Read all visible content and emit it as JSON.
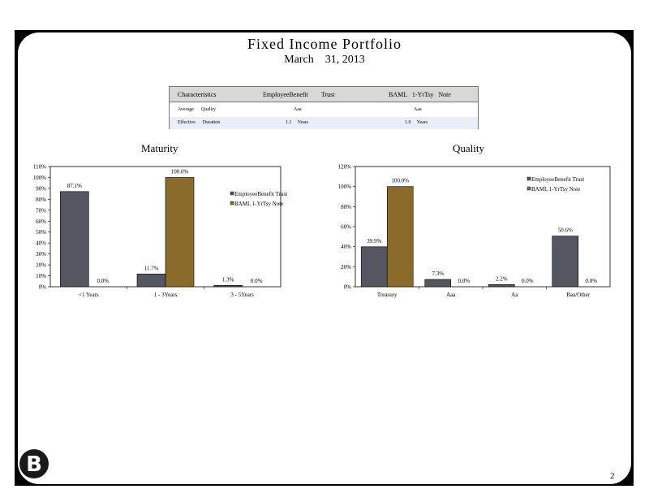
{
  "page": {
    "title": "Fixed Income Portfolio",
    "subtitle": "March    31, 2013",
    "page_number": "2",
    "logo_letter": "B"
  },
  "characteristics_table": {
    "headers": [
      "Characteristics",
      "EmployeeBenefit        Trust",
      "BAML   1-YrTsy   Note"
    ],
    "rows": [
      [
        "Average      Quality",
        "Aaa",
        "Aaa"
      ],
      [
        "Effective      Duration",
        "1.1     Years",
        "1.0     Years"
      ]
    ]
  },
  "colors": {
    "employee_series": "#545762",
    "baml_series": "#8b6b29",
    "table_header_bg": "#d6d9d6",
    "table_alt_row": "#e9eef8"
  },
  "chart_data": [
    {
      "type": "bar",
      "title": "Maturity",
      "categories": [
        "<1   Years",
        "1  -  3Years",
        "3  -  5Years"
      ],
      "series": [
        {
          "name": "EmployeeBenefit       Trust",
          "values": [
            87.1,
            11.7,
            1.3
          ],
          "labels": [
            "87.1%",
            "11.7%",
            "1.3%"
          ]
        },
        {
          "name": "BAML   1-YrTsy   Note",
          "values": [
            0.0,
            100.0,
            0.0
          ],
          "labels": [
            "0.0%",
            "100.0%",
            "0.0%"
          ]
        }
      ],
      "ylim": [
        0,
        110
      ],
      "yticks": [
        "0%",
        "10%",
        "20%",
        "30%",
        "40%",
        "50%",
        "60%",
        "70%",
        "80%",
        "90%",
        "100%",
        "110%"
      ],
      "legend": "right"
    },
    {
      "type": "bar",
      "title": "Quality",
      "categories": [
        "Treasury",
        "Aaa",
        "Aa",
        "Baa/Other"
      ],
      "series": [
        {
          "name": "EmployeeBenefit       Trust",
          "values": [
            39.9,
            7.3,
            2.2,
            50.6
          ],
          "labels": [
            "39.9%",
            "7.3%",
            "2.2%",
            "50.6%"
          ]
        },
        {
          "name": "BAML   1-YrTsy   Note",
          "values": [
            100.0,
            0.0,
            0.0,
            0.0
          ],
          "labels": [
            "100.0%",
            "0.0%",
            "0.0%",
            "0.0%"
          ]
        }
      ],
      "ylim": [
        0,
        120
      ],
      "yticks": [
        "0%",
        "20%",
        "40%",
        "60%",
        "80%",
        "100%",
        "120%"
      ],
      "legend": "top-right"
    }
  ]
}
